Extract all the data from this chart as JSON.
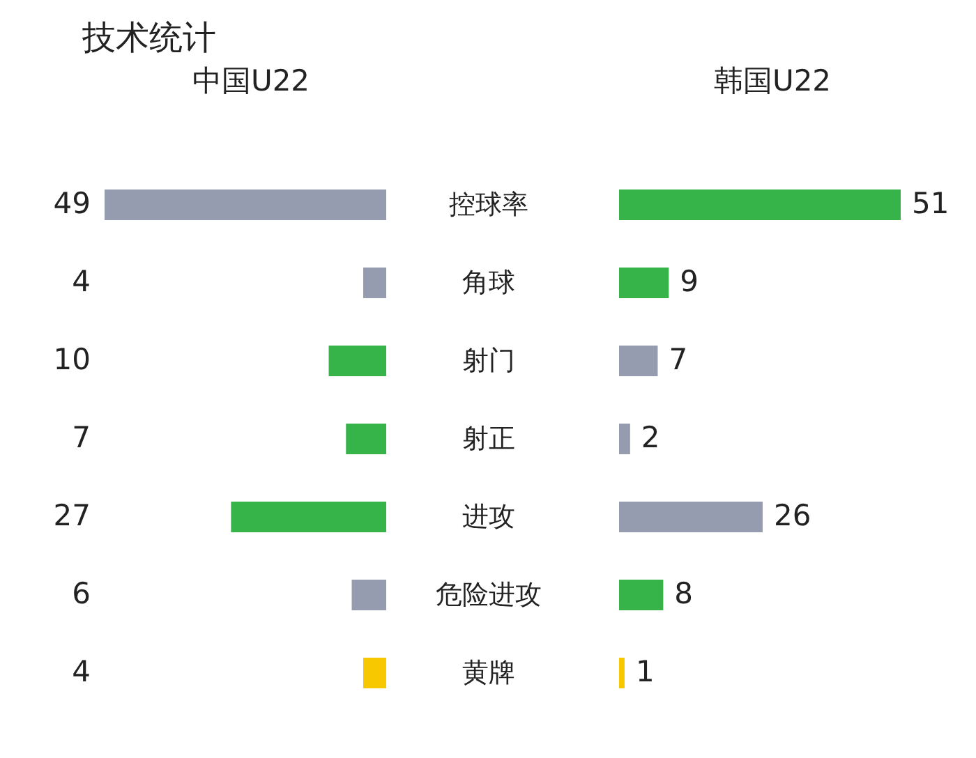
{
  "chart_data": [
    {
      "type": "bar",
      "orientation": "horizontal",
      "title": "技术统计",
      "tick_labels": "y",
      "data_labels": true,
      "categories": [
        "控球率",
        "角球",
        "射门",
        "射正",
        "进攻",
        "危险进攻",
        "黄牌"
      ],
      "series": [
        {
          "name": "中国U22",
          "values": [
            49,
            4,
            10,
            7,
            27,
            6,
            4
          ],
          "colors": [
            "#959cb0",
            "#959cb0",
            "#36b44a",
            "#36b44a",
            "#36b44a",
            "#959cb0",
            "#f7c800"
          ]
        }
      ]
    },
    {
      "type": "bar",
      "orientation": "horizontal",
      "tick_labels": false,
      "data_labels": true,
      "categories": [
        null,
        null,
        null,
        null,
        null,
        null,
        null
      ],
      "series": [
        {
          "name": "韩国U22",
          "values": [
            51,
            9,
            7,
            2,
            26,
            8,
            1
          ],
          "colors": [
            "#36b44a",
            "#36b44a",
            "#959cb0",
            "#959cb0",
            "#959cb0",
            "#36b44a",
            "#f7c800"
          ]
        }
      ]
    }
  ]
}
